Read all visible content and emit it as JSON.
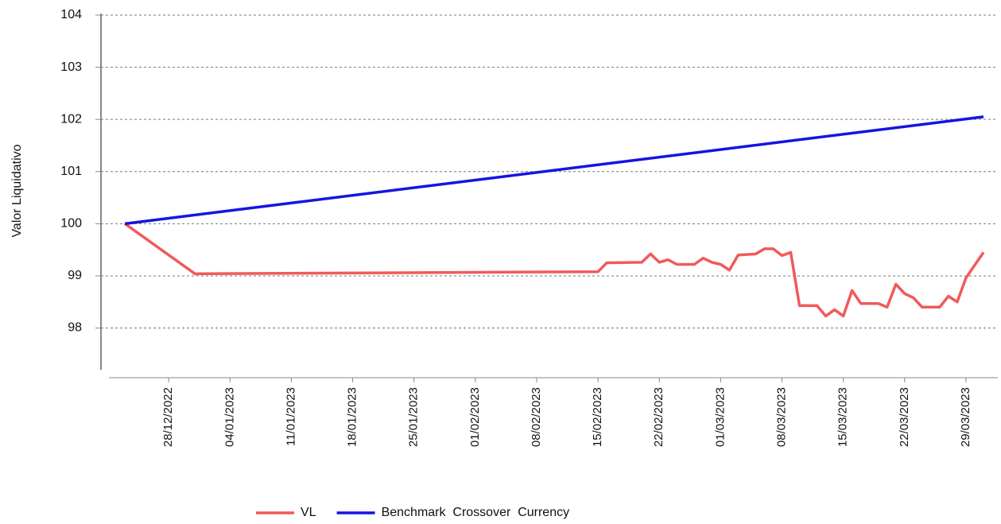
{
  "chart_data": {
    "type": "line",
    "y_label": "Valor Liquidativo",
    "ylim": [
      97.2,
      104
    ],
    "yticks": [
      98,
      99,
      100,
      101,
      102,
      103,
      104
    ],
    "xlim": [
      "20/12/2022",
      "02/04/2023"
    ],
    "xticks": [
      "28/12/2022",
      "04/01/2023",
      "11/01/2023",
      "18/01/2023",
      "25/01/2023",
      "01/02/2023",
      "08/02/2023",
      "15/02/2023",
      "22/02/2023",
      "01/03/2023",
      "08/03/2023",
      "15/03/2023",
      "22/03/2023",
      "29/03/2023"
    ],
    "grid": true,
    "legend": "bottom",
    "series": [
      {
        "name": "VL",
        "color": "#f05a5a",
        "x": [
          "23/12/2022",
          "31/12/2022",
          "15/02/2023",
          "16/02/2023",
          "20/02/2023",
          "21/02/2023",
          "22/02/2023",
          "23/02/2023",
          "24/02/2023",
          "26/02/2023",
          "27/02/2023",
          "28/02/2023",
          "01/03/2023",
          "02/03/2023",
          "03/03/2023",
          "05/03/2023",
          "06/03/2023",
          "07/03/2023",
          "08/03/2023",
          "09/03/2023",
          "10/03/2023",
          "12/03/2023",
          "13/03/2023",
          "14/03/2023",
          "15/03/2023",
          "16/03/2023",
          "17/03/2023",
          "19/03/2023",
          "20/03/2023",
          "21/03/2023",
          "22/03/2023",
          "23/03/2023",
          "24/03/2023",
          "26/03/2023",
          "27/03/2023",
          "28/03/2023",
          "29/03/2023",
          "31/03/2023"
        ],
        "values": [
          100,
          99.04,
          99.08,
          99.25,
          99.26,
          99.42,
          99.26,
          99.31,
          99.22,
          99.22,
          99.34,
          99.26,
          99.22,
          99.11,
          99.4,
          99.42,
          99.52,
          99.52,
          99.39,
          99.45,
          98.43,
          98.43,
          98.23,
          98.35,
          98.23,
          98.72,
          98.47,
          98.47,
          98.4,
          98.84,
          98.66,
          98.58,
          98.4,
          98.4,
          98.61,
          98.5,
          98.96,
          99.45
        ]
      },
      {
        "name": "Benchmark  Crossover  Currency",
        "color": "#1515e0",
        "x": [
          "23/12/2022",
          "31/03/2023"
        ],
        "values": [
          100,
          102.05
        ]
      }
    ]
  }
}
